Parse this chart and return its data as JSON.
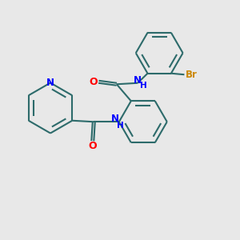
{
  "background_color": "#e8e8e8",
  "bond_color": "#2d6b6b",
  "N_color": "#0000ff",
  "O_color": "#ff0000",
  "Br_color": "#cc8800",
  "line_width": 1.5,
  "figsize": [
    3.0,
    3.0
  ],
  "dpi": 100,
  "xlim": [
    0,
    10
  ],
  "ylim": [
    0,
    10
  ]
}
